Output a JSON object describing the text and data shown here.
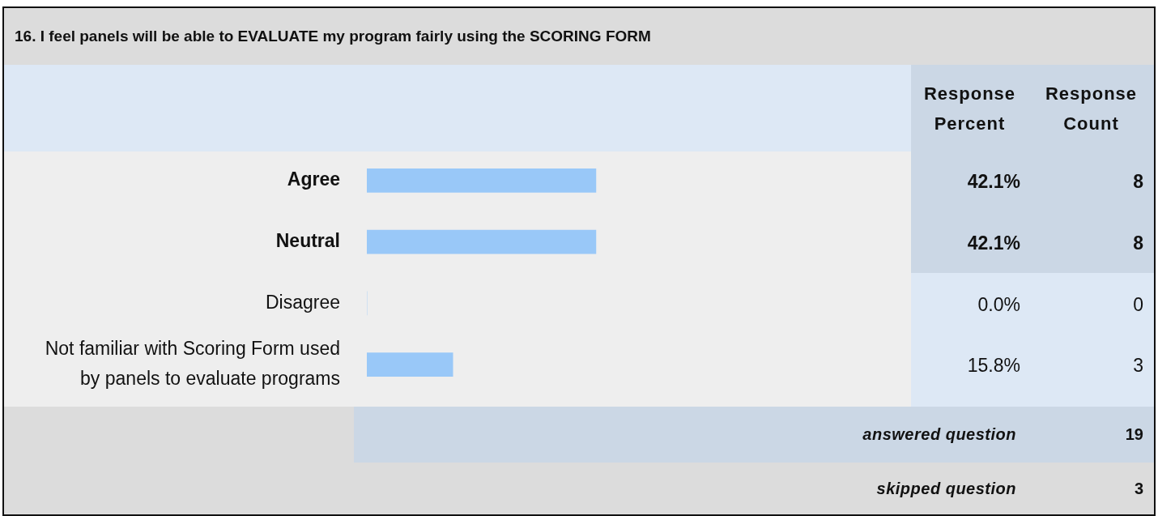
{
  "chart_data": {
    "type": "bar",
    "orientation": "horizontal",
    "title": "16. I feel panels will be able to EVALUATE my program fairly using the SCORING FORM",
    "categories": [
      "Agree",
      "Neutral",
      "Disagree",
      "Not familiar with Scoring Form used by panels to evaluate programs"
    ],
    "values": [
      42.1,
      42.1,
      0,
      15.8
    ],
    "value_labels": [
      "42.1%",
      "42.1%",
      "0.0%",
      "15.8%"
    ],
    "color": "#99c8f8",
    "tick_labels": "y",
    "annotations": [
      "Response Percent",
      "Response Count",
      "8",
      "8",
      "0",
      "3",
      "answered question",
      "19",
      "skipped question",
      "3"
    ]
  }
}
